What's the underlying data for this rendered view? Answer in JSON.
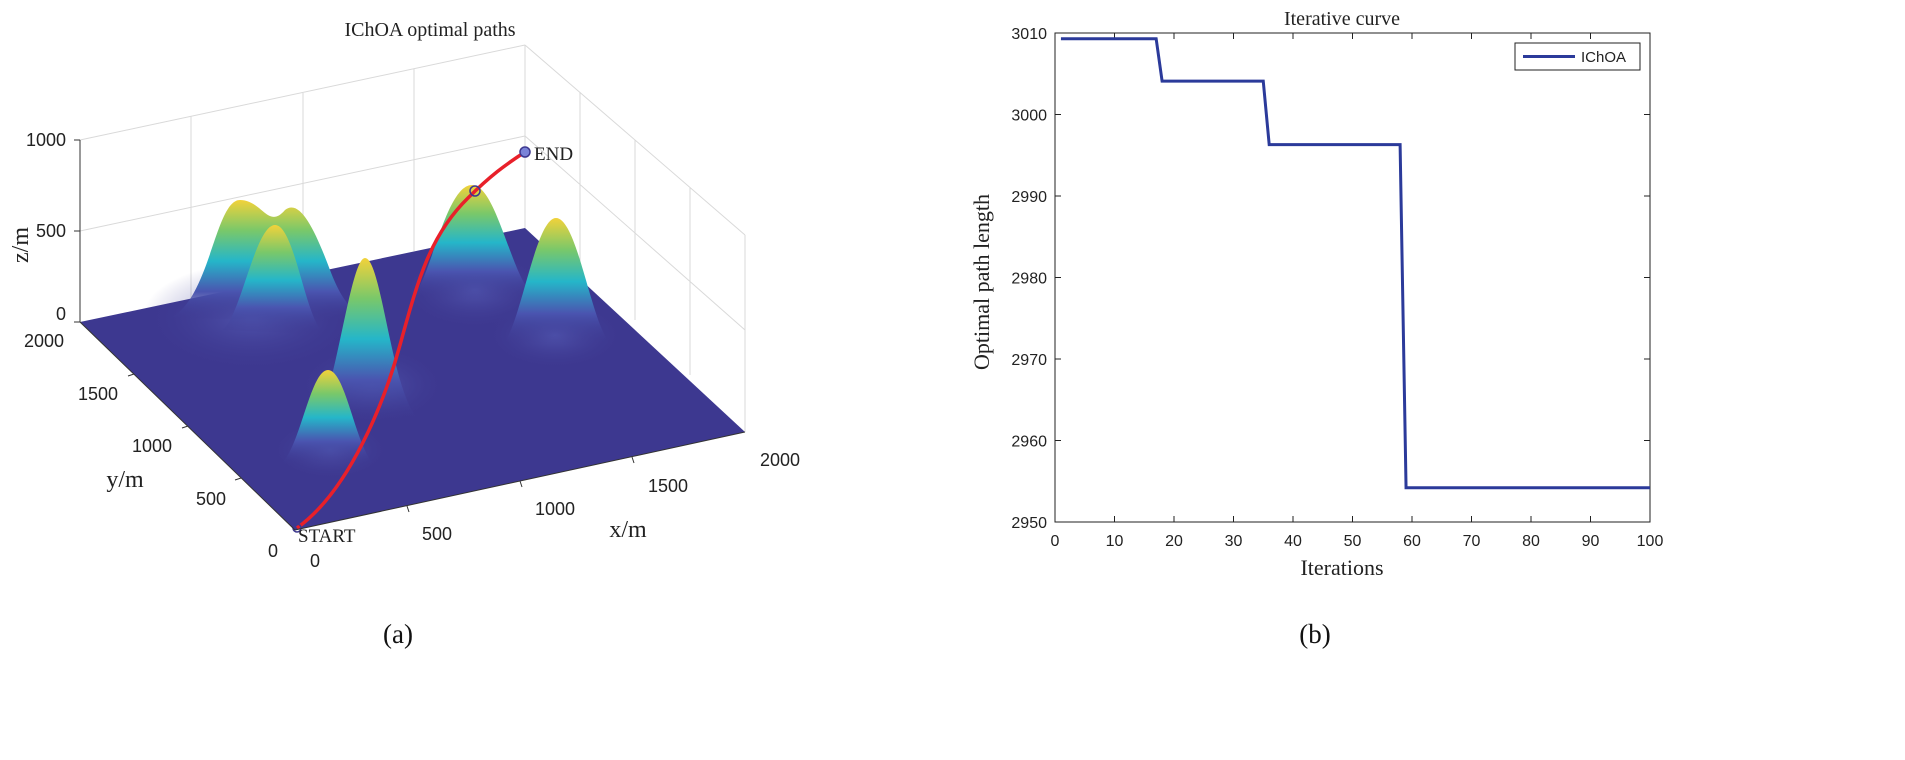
{
  "chart_data": [
    {
      "type": "surface3d",
      "panel_label": "(a)",
      "title": "IChOA optimal paths",
      "xlabel": "x/m",
      "ylabel": "y/m",
      "zlabel": "z/m",
      "xlim": [
        0,
        2000
      ],
      "ylim": [
        0,
        2000
      ],
      "zlim": [
        0,
        1000
      ],
      "xticks": [
        "0",
        "500",
        "1000",
        "1500",
        "2000"
      ],
      "yticks": [
        "0",
        "500",
        "1000",
        "1500",
        "2000"
      ],
      "zticks": [
        "0",
        "500",
        "1000"
      ],
      "start_label": "START",
      "end_label": "END",
      "start": [
        0,
        0,
        0
      ],
      "end": [
        2000,
        2000,
        900
      ],
      "peaks_description": "Gaussian obstacle peaks on the terrain surface",
      "path_color": "#e8202a",
      "surface_base_color": "#3d3890"
    },
    {
      "type": "line",
      "panel_label": "(b)",
      "title": "Iterative curve",
      "xlabel": "Iterations",
      "ylabel": "Optimal path length",
      "xlim": [
        0,
        100
      ],
      "ylim": [
        2950,
        3010
      ],
      "xticks": [
        0,
        10,
        20,
        30,
        40,
        50,
        60,
        70,
        80,
        90,
        100
      ],
      "yticks": [
        2950,
        2960,
        2970,
        2980,
        2990,
        3000,
        3010
      ],
      "legend": "top-right",
      "series": [
        {
          "name": "IChOA",
          "color": "#2b3a9a",
          "x": [
            1,
            17,
            18,
            35,
            36,
            58,
            59,
            100
          ],
          "y": [
            3009.3,
            3009.3,
            3004.1,
            3004.1,
            2996.3,
            2996.3,
            2954.2,
            2954.2
          ]
        }
      ]
    }
  ]
}
